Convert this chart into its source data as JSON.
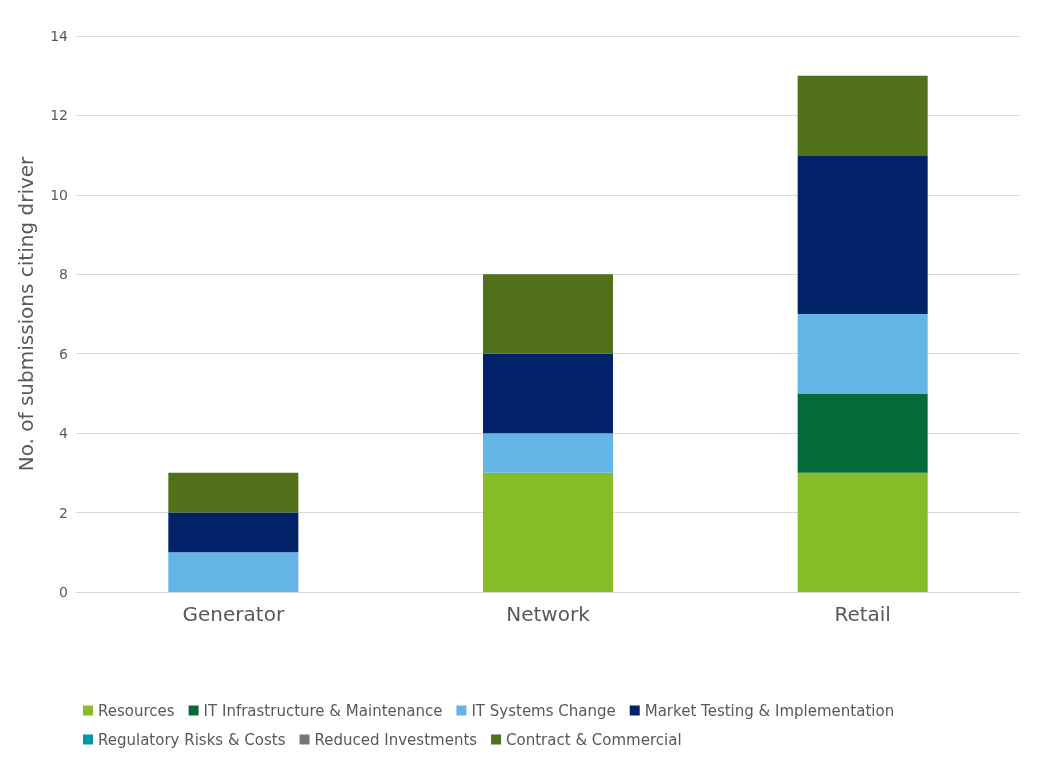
{
  "chart_data": {
    "type": "bar",
    "stacked": true,
    "ylabel": "No. of submissions citing driver",
    "categories": [
      "Generator",
      "Network",
      "Retail"
    ],
    "series": [
      {
        "name": "Resources",
        "color": "#86bc25",
        "values": [
          0,
          3,
          3
        ]
      },
      {
        "name": "IT Infrastructure & Maintenance",
        "color": "#046a38",
        "values": [
          0,
          0,
          2
        ]
      },
      {
        "name": "IT Systems Change",
        "color": "#62b5e5",
        "values": [
          1,
          1,
          2
        ]
      },
      {
        "name": "Market Testing & Implementation",
        "color": "#012169",
        "values": [
          1,
          2,
          4
        ]
      },
      {
        "name": "Regulatory Risks & Costs",
        "color": "#0097a9",
        "values": [
          0,
          0,
          0
        ]
      },
      {
        "name": "Reduced Investments",
        "color": "#75787b",
        "values": [
          0,
          0,
          0
        ]
      },
      {
        "name": "Contract & Commercial",
        "color": "#507019",
        "values": [
          1,
          2,
          2
        ]
      }
    ],
    "ylim": [
      0,
      14
    ],
    "yticks": [
      0,
      2,
      4,
      6,
      8,
      10,
      12,
      14
    ],
    "grid": "y",
    "legend": "bottom"
  }
}
